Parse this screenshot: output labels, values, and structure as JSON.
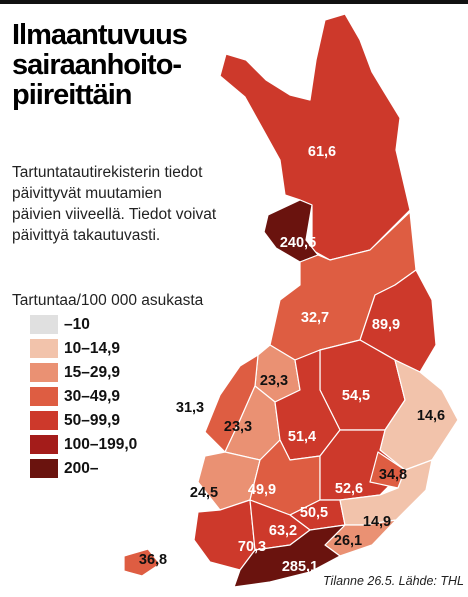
{
  "header": {
    "title_lines": [
      "Ilmaantuvuus",
      "sairaanhoito-",
      "piireittäin"
    ]
  },
  "description_lines": [
    "Tartuntatautirekisterin tiedot",
    "päivittyvät muutamien",
    "päivien viiveellä. Tiedot voivat",
    "päivittyä takautuvasti."
  ],
  "legend": {
    "title": "Tartuntaa/100 000 asukasta",
    "items": [
      {
        "label": "–10",
        "color": "#e0e0e0"
      },
      {
        "label": "10–14,9",
        "color": "#f2c3ab"
      },
      {
        "label": "15–29,9",
        "color": "#ea9173"
      },
      {
        "label": "30–49,9",
        "color": "#de5d42"
      },
      {
        "label": "50–99,9",
        "color": "#cd392b"
      },
      {
        "label": "100–199,0",
        "color": "#a41c1a"
      },
      {
        "label": "200–",
        "color": "#6a130e"
      }
    ]
  },
  "map": {
    "regions": [
      {
        "label": "61,6",
        "color": "#cd392b"
      },
      {
        "label": "240,5",
        "color": "#6a130e"
      },
      {
        "label": "32,7",
        "color": "#de5d42"
      },
      {
        "label": "89,9",
        "color": "#cd392b"
      },
      {
        "label": "23,3",
        "color": "#ea9173"
      },
      {
        "label": "31,3",
        "color": "#de5d42"
      },
      {
        "label": "23,3",
        "color": "#ea9173"
      },
      {
        "label": "54,5",
        "color": "#cd392b"
      },
      {
        "label": "14,6",
        "color": "#f2c3ab"
      },
      {
        "label": "51,4",
        "color": "#cd392b"
      },
      {
        "label": "24,5",
        "color": "#ea9173"
      },
      {
        "label": "49,9",
        "color": "#de5d42"
      },
      {
        "label": "52,6",
        "color": "#cd392b"
      },
      {
        "label": "34,8",
        "color": "#de5d42"
      },
      {
        "label": "50,5",
        "color": "#cd392b"
      },
      {
        "label": "14,9",
        "color": "#f2c3ab"
      },
      {
        "label": "70,3",
        "color": "#cd392b"
      },
      {
        "label": "63,2",
        "color": "#cd392b"
      },
      {
        "label": "26,1",
        "color": "#ea9173"
      },
      {
        "label": "285,1",
        "color": "#6a130e"
      },
      {
        "label": "36,8",
        "color": "#de5d42"
      }
    ]
  },
  "footer": "Tilanne 26.5. Lähde: THL"
}
